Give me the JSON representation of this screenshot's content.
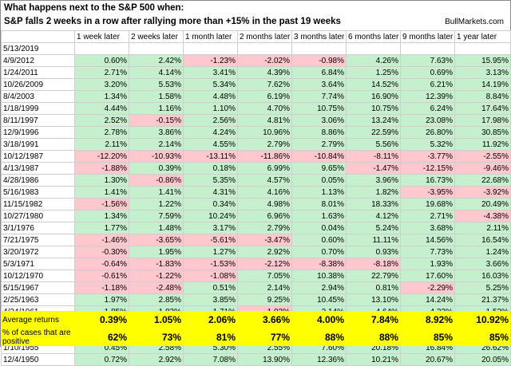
{
  "title": "What happens next to the S&P 500 when:",
  "subtitle": "S&P falls 2 weeks in a row after rallying more than +15% in the past 19 weeks",
  "brand": "BullMarkets.com",
  "colors": {
    "positive": "#c6efce",
    "negative": "#ffc7ce",
    "summary": "#ffff00"
  },
  "chart_data": {
    "type": "table",
    "columns": [
      "",
      "1 week later",
      "2 weeks later",
      "1 month later",
      "2 months later",
      "3 months later",
      "6 months later",
      "9 months later",
      "1 year later"
    ],
    "rows": [
      {
        "date": "5/13/2019",
        "values": [
          "",
          "",
          "",
          "",
          "",
          "",
          "",
          ""
        ]
      },
      {
        "date": "4/9/2012",
        "values": [
          "0.60%",
          "2.42%",
          "-1.23%",
          "-2.02%",
          "-0.98%",
          "4.26%",
          "7.63%",
          "15.95%"
        ]
      },
      {
        "date": "1/24/2011",
        "values": [
          "2.71%",
          "4.14%",
          "3.41%",
          "4.39%",
          "6.84%",
          "1.25%",
          "0.69%",
          "3.13%"
        ]
      },
      {
        "date": "10/26/2009",
        "values": [
          "3.20%",
          "5.53%",
          "5.34%",
          "7.62%",
          "3.64%",
          "14.52%",
          "6.21%",
          "14.19%"
        ]
      },
      {
        "date": "8/4/2003",
        "values": [
          "1.34%",
          "1.58%",
          "4.48%",
          "6.19%",
          "7.74%",
          "16.90%",
          "12.39%",
          "8.84%"
        ]
      },
      {
        "date": "1/18/1999",
        "values": [
          "4.44%",
          "1.16%",
          "1.10%",
          "4.70%",
          "10.75%",
          "10.75%",
          "6.24%",
          "17.64%"
        ]
      },
      {
        "date": "8/11/1997",
        "values": [
          "2.52%",
          "-0.15%",
          "2.56%",
          "4.81%",
          "3.06%",
          "13.24%",
          "23.08%",
          "17.98%"
        ]
      },
      {
        "date": "12/9/1996",
        "values": [
          "2.78%",
          "3.86%",
          "4.24%",
          "10.96%",
          "8.86%",
          "22.59%",
          "26.80%",
          "30.85%"
        ]
      },
      {
        "date": "3/18/1991",
        "values": [
          "2.11%",
          "2.14%",
          "4.55%",
          "2.79%",
          "2.79%",
          "5.56%",
          "5.32%",
          "11.92%"
        ]
      },
      {
        "date": "10/12/1987",
        "values": [
          "-12.20%",
          "-10.93%",
          "-13.11%",
          "-11.86%",
          "-10.84%",
          "-8.11%",
          "-3.77%",
          "-2.55%"
        ]
      },
      {
        "date": "4/13/1987",
        "values": [
          "-1.88%",
          "0.39%",
          "0.18%",
          "6.99%",
          "9.65%",
          "-1.47%",
          "-12.15%",
          "-9.46%"
        ]
      },
      {
        "date": "4/28/1986",
        "values": [
          "1.30%",
          "-0.86%",
          "5.35%",
          "4.57%",
          "0.05%",
          "3.96%",
          "16.73%",
          "22.68%"
        ]
      },
      {
        "date": "5/16/1983",
        "values": [
          "1.41%",
          "1.41%",
          "4.31%",
          "4.16%",
          "1.13%",
          "1.82%",
          "-3.95%",
          "-3.92%"
        ]
      },
      {
        "date": "11/15/1982",
        "values": [
          "-1.56%",
          "1.22%",
          "0.34%",
          "4.98%",
          "8.01%",
          "18.33%",
          "19.68%",
          "20.49%"
        ]
      },
      {
        "date": "10/27/1980",
        "values": [
          "1.34%",
          "7.59%",
          "10.24%",
          "6.96%",
          "1.63%",
          "4.12%",
          "2.71%",
          "-4.38%"
        ]
      },
      {
        "date": "3/1/1976",
        "values": [
          "1.77%",
          "1.48%",
          "3.17%",
          "2.79%",
          "0.04%",
          "5.24%",
          "3.68%",
          "2.11%"
        ]
      },
      {
        "date": "7/21/1975",
        "values": [
          "-1.46%",
          "-3.65%",
          "-5.61%",
          "-3.47%",
          "0.60%",
          "11.11%",
          "14.56%",
          "16.54%"
        ]
      },
      {
        "date": "3/20/1972",
        "values": [
          "-0.30%",
          "1.95%",
          "1.27%",
          "2.92%",
          "0.70%",
          "0.93%",
          "7.73%",
          "1.24%"
        ]
      },
      {
        "date": "5/3/1971",
        "values": [
          "-0.64%",
          "-1.83%",
          "-1.53%",
          "-2.12%",
          "-8.38%",
          "-8.18%",
          "1.93%",
          "3.66%"
        ]
      },
      {
        "date": "10/12/1970",
        "values": [
          "-0.61%",
          "-1.22%",
          "-1.08%",
          "7.05%",
          "10.38%",
          "22.79%",
          "17.60%",
          "16.03%"
        ]
      },
      {
        "date": "5/15/1967",
        "values": [
          "-1.18%",
          "-2.48%",
          "0.51%",
          "2.14%",
          "2.94%",
          "0.81%",
          "-2.29%",
          "5.25%"
        ]
      },
      {
        "date": "2/25/1963",
        "values": [
          "1.97%",
          "2.85%",
          "3.85%",
          "9.25%",
          "10.45%",
          "13.10%",
          "14.24%",
          "21.37%"
        ]
      },
      {
        "date": "4/24/1961",
        "values": [
          "1.85%",
          "1.82%",
          "1.71%",
          "-1.03%",
          "2.14%",
          "4.64%",
          "4.32%",
          "1.52%"
        ]
      },
      {
        "date": "11/24/1958",
        "values": [
          "-0.04%",
          "1.41%",
          "3.11%",
          "5.66%",
          "5.58%",
          "11.81%",
          "13.57%",
          "9.95%"
        ]
      },
      {
        "date": "8/8/1955",
        "values": [
          "-0.45%",
          "1.85%",
          "3.98%",
          "-2.35%",
          "7.18%",
          "3.39%",
          "11.63%",
          "16.30%"
        ]
      },
      {
        "date": "1/10/1955",
        "values": [
          "0.45%",
          "2.58%",
          "5.30%",
          "2.55%",
          "7.60%",
          "20.18%",
          "16.84%",
          "26.62%"
        ]
      },
      {
        "date": "12/4/1950",
        "values": [
          "0.72%",
          "2.92%",
          "7.08%",
          "13.90%",
          "12.36%",
          "10.21%",
          "20.67%",
          "20.05%"
        ]
      }
    ],
    "summary": [
      {
        "label": "Average returns",
        "values": [
          "0.39%",
          "1.05%",
          "2.06%",
          "3.66%",
          "4.00%",
          "7.84%",
          "8.92%",
          "10.92%"
        ]
      },
      {
        "label": "% of cases that are positive",
        "values": [
          "62%",
          "73%",
          "81%",
          "77%",
          "88%",
          "88%",
          "85%",
          "85%"
        ]
      }
    ]
  }
}
